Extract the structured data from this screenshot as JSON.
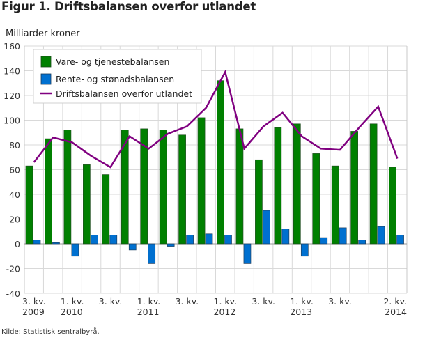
{
  "title": "Figur 1. Driftsbalansen overfor utlandet",
  "source": "Kilde: Statistisk sentralbyrå.",
  "colors": {
    "vare": "#008000",
    "rente": "#0070d0",
    "drift": "#800080",
    "grid": "#d9d9d9",
    "axis": "#c8c8c8"
  },
  "chart_data": {
    "type": "bar",
    "title": "Figur 1. Driftsbalansen overfor utlandet",
    "ylabel": "Milliarder kroner",
    "xlabel": "",
    "ylim": [
      -40,
      160
    ],
    "yticks": [
      -40,
      -20,
      0,
      20,
      40,
      60,
      80,
      100,
      120,
      140,
      160
    ],
    "ytick_labels": [
      "-40",
      "-20",
      "0",
      "20",
      "40",
      "60",
      "80",
      "100",
      "120",
      "140",
      "160"
    ],
    "grid": true,
    "legend_position": "top-left",
    "categories": [
      "2009Q3",
      "2009Q4",
      "2010Q1",
      "2010Q2",
      "2010Q3",
      "2010Q4",
      "2011Q1",
      "2011Q2",
      "2011Q3",
      "2011Q4",
      "2012Q1",
      "2012Q2",
      "2012Q3",
      "2012Q4",
      "2013Q1",
      "2013Q2",
      "2013Q3",
      "2013Q4",
      "2014Q1",
      "2014Q2"
    ],
    "xtick_labels": [
      {
        "index": 0,
        "line1": "3. kv.",
        "line2": "2009"
      },
      {
        "index": 2,
        "line1": "1. kv.",
        "line2": "2010"
      },
      {
        "index": 4,
        "line1": "3. kv.",
        "line2": ""
      },
      {
        "index": 6,
        "line1": "1. kv.",
        "line2": "2011"
      },
      {
        "index": 8,
        "line1": "3. kv.",
        "line2": ""
      },
      {
        "index": 10,
        "line1": "1. kv.",
        "line2": "2012"
      },
      {
        "index": 12,
        "line1": "3. kv.",
        "line2": ""
      },
      {
        "index": 14,
        "line1": "1. kv.",
        "line2": "2013"
      },
      {
        "index": 16,
        "line1": "3. kv.",
        "line2": ""
      },
      {
        "index": 19,
        "line1": "2. kv.",
        "line2": "2014"
      }
    ],
    "series": [
      {
        "name": "Vare- og tjenestebalansen",
        "type": "bar",
        "color": "#008000",
        "values": [
          63,
          85,
          92,
          64,
          56,
          92,
          93,
          92,
          88,
          102,
          132,
          93,
          68,
          94,
          97,
          73,
          63,
          91,
          97,
          62
        ]
      },
      {
        "name": "Rente- og stønadsbalansen",
        "type": "bar",
        "color": "#0070d0",
        "values": [
          3,
          1,
          -10,
          7,
          7,
          -5,
          -16,
          -2,
          7,
          8,
          7,
          -16,
          27,
          12,
          -10,
          5,
          13,
          3,
          14,
          7
        ]
      },
      {
        "name": "Driftsbalansen overfor utlandet",
        "type": "line",
        "color": "#800080",
        "values": [
          66,
          86,
          82,
          71,
          62,
          87,
          77,
          89,
          95,
          110,
          139,
          77,
          95,
          106,
          87,
          77,
          76,
          94,
          111,
          69
        ]
      }
    ]
  }
}
